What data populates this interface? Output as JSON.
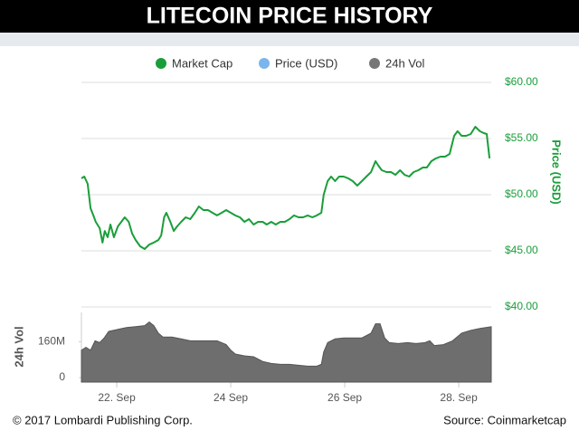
{
  "header": {
    "title": "LITECOIN PRICE HISTORY"
  },
  "legend": [
    {
      "name": "Market Cap",
      "color": "#1a9e3a"
    },
    {
      "name": "Price (USD)",
      "color": "#7cb5ec"
    },
    {
      "name": "24h Vol",
      "color": "#777777"
    }
  ],
  "footer": {
    "left": "© 2017 Lombardi Publishing Corp.",
    "right": "Source: Coinmarketcap"
  },
  "chart_data": [
    {
      "type": "line",
      "y_label": "Price (USD)",
      "xlim": [
        21.38,
        28.57
      ],
      "ylim": [
        40,
        60
      ],
      "yticks": [
        {
          "value": 40,
          "label": "$40.00"
        },
        {
          "value": 45,
          "label": "$45.00"
        },
        {
          "value": 50,
          "label": "$50.00"
        },
        {
          "value": 55,
          "label": "$55.00"
        },
        {
          "value": 60,
          "label": "$60.00"
        }
      ],
      "grid": true,
      "x": [
        21.38,
        21.43,
        21.49,
        21.54,
        21.59,
        21.63,
        21.7,
        21.75,
        21.79,
        21.84,
        21.89,
        21.95,
        22.02,
        22.08,
        22.14,
        22.21,
        22.27,
        22.33,
        22.41,
        22.49,
        22.57,
        22.65,
        22.73,
        22.78,
        22.83,
        22.87,
        22.94,
        23.0,
        23.06,
        23.13,
        23.21,
        23.29,
        23.37,
        23.44,
        23.52,
        23.6,
        23.68,
        23.76,
        23.84,
        23.92,
        24.0,
        24.08,
        24.16,
        24.24,
        24.32,
        24.4,
        24.48,
        24.56,
        24.63,
        24.71,
        24.79,
        24.87,
        24.95,
        25.03,
        25.11,
        25.19,
        25.27,
        25.35,
        25.43,
        25.51,
        25.59,
        25.63,
        25.7,
        25.76,
        25.83,
        25.9,
        25.98,
        26.06,
        26.14,
        26.22,
        26.3,
        26.38,
        26.46,
        26.54,
        26.59,
        26.65,
        26.73,
        26.81,
        26.89,
        26.97,
        27.05,
        27.13,
        27.21,
        27.29,
        27.37,
        27.44,
        27.52,
        27.6,
        27.68,
        27.76,
        27.84,
        27.92,
        27.98,
        28.05,
        28.13,
        28.21,
        28.29,
        28.37,
        28.44,
        28.49,
        28.54
      ],
      "series": [
        {
          "color": "#1a9e3a",
          "values": [
            51.45,
            51.61,
            50.97,
            48.79,
            48.15,
            47.58,
            47.02,
            45.73,
            46.77,
            46.21,
            47.34,
            46.21,
            47.18,
            47.58,
            47.98,
            47.58,
            46.53,
            45.97,
            45.4,
            45.16,
            45.56,
            45.73,
            45.97,
            46.37,
            47.98,
            48.39,
            47.58,
            46.77,
            47.18,
            47.58,
            47.98,
            47.82,
            48.39,
            48.95,
            48.63,
            48.63,
            48.39,
            48.15,
            48.39,
            48.63,
            48.39,
            48.15,
            47.98,
            47.58,
            47.82,
            47.34,
            47.58,
            47.58,
            47.34,
            47.58,
            47.34,
            47.58,
            47.58,
            47.82,
            48.15,
            47.98,
            47.98,
            48.15,
            47.98,
            48.15,
            48.39,
            50.0,
            51.21,
            51.61,
            51.21,
            51.61,
            51.61,
            51.45,
            51.21,
            50.81,
            51.21,
            51.61,
            52.02,
            52.98,
            52.58,
            52.18,
            52.02,
            52.02,
            51.77,
            52.18,
            51.77,
            51.61,
            52.02,
            52.18,
            52.42,
            52.42,
            52.98,
            53.23,
            53.39,
            53.39,
            53.63,
            55.24,
            55.65,
            55.24,
            55.24,
            55.4,
            56.05,
            55.65,
            55.48,
            55.4,
            53.23
          ]
        }
      ]
    },
    {
      "type": "area",
      "y_label": "24h Vol",
      "xlim": [
        21.38,
        28.57
      ],
      "xticks": [
        {
          "value": 22,
          "label": "22. Sep"
        },
        {
          "value": 24,
          "label": "24 Sep"
        },
        {
          "value": 26,
          "label": "26 Sep"
        },
        {
          "value": 28,
          "label": "28. Sep"
        }
      ],
      "ylim": [
        0,
        300
      ],
      "yticks": [
        0,
        {
          "value": 160,
          "label": "160M"
        }
      ],
      "x": [
        21.38,
        21.46,
        21.54,
        21.62,
        21.7,
        21.78,
        21.86,
        22.02,
        22.17,
        22.33,
        22.49,
        22.57,
        22.65,
        22.73,
        22.81,
        22.97,
        23.13,
        23.29,
        23.44,
        23.6,
        23.76,
        23.92,
        24.0,
        24.08,
        24.24,
        24.4,
        24.56,
        24.71,
        24.87,
        25.03,
        25.19,
        25.35,
        25.51,
        25.59,
        25.63,
        25.7,
        25.83,
        25.98,
        26.14,
        26.3,
        26.46,
        26.54,
        26.62,
        26.7,
        26.78,
        26.94,
        27.1,
        27.25,
        27.41,
        27.49,
        27.57,
        27.73,
        27.89,
        28.05,
        28.21,
        28.37,
        28.57
      ],
      "series": [
        {
          "color": "#6e6e6e",
          "values": [
            122,
            135,
            122,
            164,
            156,
            177,
            206,
            215,
            223,
            227,
            232,
            248,
            232,
            198,
            181,
            181,
            173,
            164,
            164,
            164,
            164,
            147,
            122,
            105,
            97,
            93,
            72,
            63,
            59,
            59,
            55,
            51,
            51,
            59,
            114,
            156,
            173,
            177,
            177,
            177,
            198,
            240,
            240,
            177,
            156,
            152,
            156,
            152,
            156,
            164,
            143,
            147,
            164,
            198,
            211,
            219,
            227
          ]
        }
      ]
    }
  ]
}
